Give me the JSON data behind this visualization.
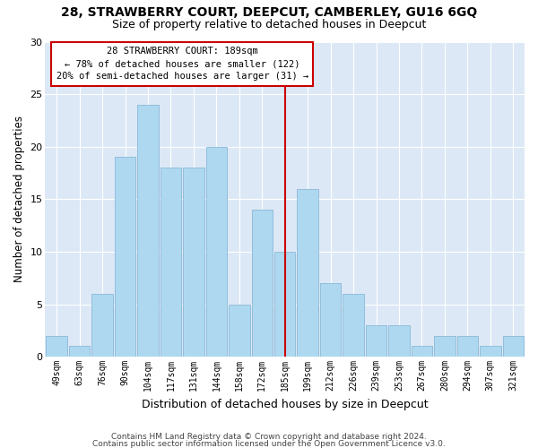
{
  "title1": "28, STRAWBERRY COURT, DEEPCUT, CAMBERLEY, GU16 6GQ",
  "title2": "Size of property relative to detached houses in Deepcut",
  "xlabel": "Distribution of detached houses by size in Deepcut",
  "ylabel": "Number of detached properties",
  "categories": [
    "49sqm",
    "63sqm",
    "76sqm",
    "90sqm",
    "104sqm",
    "117sqm",
    "131sqm",
    "144sqm",
    "158sqm",
    "172sqm",
    "185sqm",
    "199sqm",
    "212sqm",
    "226sqm",
    "239sqm",
    "253sqm",
    "267sqm",
    "280sqm",
    "294sqm",
    "307sqm",
    "321sqm"
  ],
  "values": [
    2,
    1,
    6,
    19,
    24,
    18,
    18,
    20,
    5,
    14,
    10,
    16,
    7,
    6,
    3,
    3,
    1,
    2,
    2,
    1,
    2
  ],
  "bar_color": "#add8f0",
  "bar_edge_color": "#8ab8d8",
  "vline_index": 10,
  "vline_color": "#cc0000",
  "annotation_title": "28 STRAWBERRY COURT: 189sqm",
  "annotation_line1": "← 78% of detached houses are smaller (122)",
  "annotation_line2": "20% of semi-detached houses are larger (31) →",
  "annotation_box_color": "#cc0000",
  "background_color": "#dce8f5",
  "ylim": [
    0,
    30
  ],
  "yticks": [
    0,
    5,
    10,
    15,
    20,
    25,
    30
  ],
  "footer1": "Contains HM Land Registry data © Crown copyright and database right 2024.",
  "footer2": "Contains public sector information licensed under the Open Government Licence v3.0.",
  "title1_fontsize": 10,
  "title2_fontsize": 9,
  "xlabel_fontsize": 9,
  "ylabel_fontsize": 8.5
}
